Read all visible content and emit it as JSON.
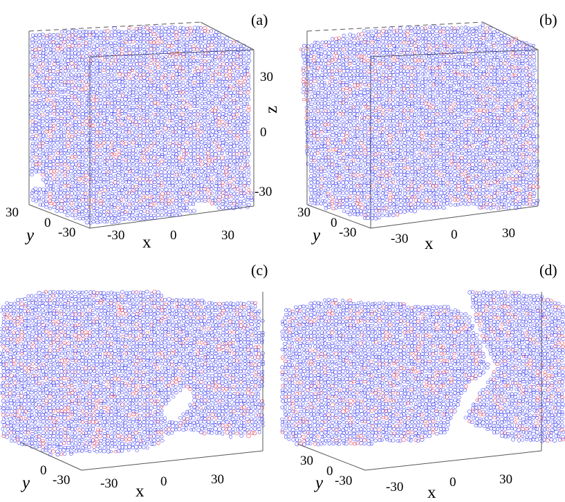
{
  "figure": {
    "panels": [
      {
        "label": "(a)",
        "x_ticks": [
          "-30",
          "0",
          "30"
        ],
        "y_ticks": [
          "30",
          "0",
          "-30"
        ],
        "z_ticks": [
          "30",
          "0",
          "-30"
        ],
        "x_label": "x",
        "y_label": "y",
        "z_label": "z"
      },
      {
        "label": "(b)",
        "x_ticks": [
          "-30",
          "0",
          "30"
        ],
        "y_ticks": [
          "30",
          "0",
          "-30"
        ],
        "x_label": "x",
        "y_label": "y"
      },
      {
        "label": "(c)",
        "x_ticks": [
          "-30",
          "0",
          "30"
        ],
        "y_ticks": [
          "0",
          "-30"
        ],
        "x_label": "x",
        "y_label": "y"
      },
      {
        "label": "(d)",
        "x_ticks": [
          "-30",
          "0",
          "30"
        ],
        "y_ticks": [
          "30",
          "0",
          "-30"
        ],
        "x_label": "x",
        "y_label": "y"
      }
    ],
    "colors": {
      "mesh_primary": "#3a3af0",
      "mesh_secondary": "#e0304a",
      "box_lines": "#555555"
    }
  }
}
